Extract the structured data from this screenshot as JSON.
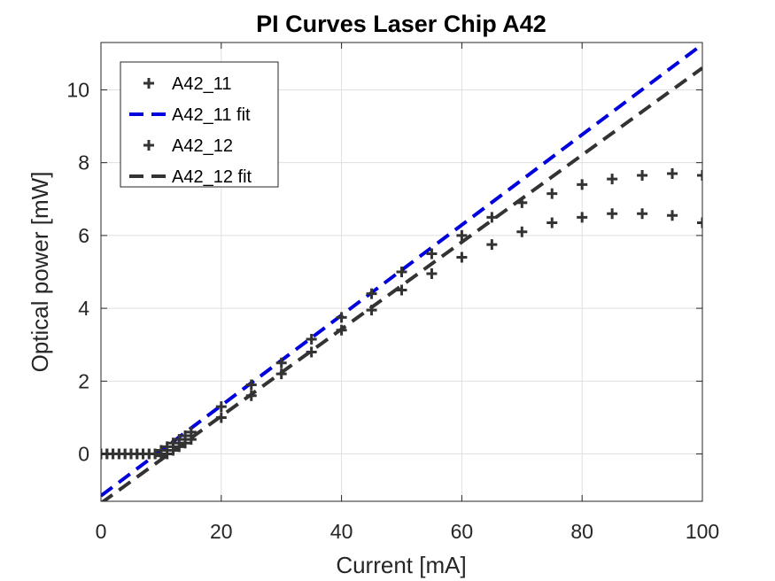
{
  "chart_data": {
    "type": "scatter",
    "title": "PI Curves Laser Chip A42",
    "xlabel": "Current [mA]",
    "ylabel": "Optical power [mW]",
    "xlim": [
      0,
      100
    ],
    "ylim": [
      -1.3,
      11.3
    ],
    "xticks": [
      0,
      20,
      40,
      60,
      80,
      100
    ],
    "yticks": [
      0,
      2,
      4,
      6,
      8,
      10
    ],
    "grid": true,
    "legend_position": "top-left",
    "series": [
      {
        "name": "A42_11",
        "kind": "markers",
        "marker": "plus",
        "color": "#333333",
        "points": [
          [
            0,
            0
          ],
          [
            1,
            0
          ],
          [
            2,
            0
          ],
          [
            3,
            0
          ],
          [
            4,
            0
          ],
          [
            5,
            0
          ],
          [
            6,
            0
          ],
          [
            7,
            0
          ],
          [
            8,
            0
          ],
          [
            9,
            0
          ],
          [
            10,
            0.1
          ],
          [
            11,
            0.2
          ],
          [
            12,
            0.3
          ],
          [
            13,
            0.4
          ],
          [
            14,
            0.5
          ],
          [
            15,
            0.6
          ],
          [
            20,
            1.3
          ],
          [
            25,
            1.9
          ],
          [
            30,
            2.5
          ],
          [
            35,
            3.15
          ],
          [
            40,
            3.75
          ],
          [
            45,
            4.4
          ],
          [
            50,
            5.0
          ],
          [
            55,
            5.5
          ],
          [
            60,
            6.0
          ],
          [
            65,
            6.5
          ],
          [
            70,
            6.9
          ],
          [
            75,
            7.15
          ],
          [
            80,
            7.4
          ],
          [
            85,
            7.55
          ],
          [
            90,
            7.65
          ],
          [
            95,
            7.7
          ],
          [
            100,
            7.65
          ]
        ]
      },
      {
        "name": "A42_11 fit",
        "kind": "line",
        "color": "#0000dd",
        "dash": true,
        "points": [
          [
            0,
            -1.15
          ],
          [
            100,
            11.25
          ]
        ]
      },
      {
        "name": "A42_12",
        "kind": "markers",
        "marker": "plus",
        "color": "#333333",
        "points": [
          [
            0,
            0
          ],
          [
            1,
            0
          ],
          [
            2,
            0
          ],
          [
            3,
            0
          ],
          [
            4,
            0
          ],
          [
            5,
            0
          ],
          [
            6,
            0
          ],
          [
            7,
            0
          ],
          [
            8,
            0
          ],
          [
            9,
            0
          ],
          [
            10,
            -0.05
          ],
          [
            11,
            0
          ],
          [
            12,
            0.1
          ],
          [
            13,
            0.2
          ],
          [
            14,
            0.3
          ],
          [
            15,
            0.4
          ],
          [
            20,
            1.0
          ],
          [
            25,
            1.6
          ],
          [
            30,
            2.2
          ],
          [
            35,
            2.8
          ],
          [
            40,
            3.4
          ],
          [
            45,
            3.95
          ],
          [
            50,
            4.5
          ],
          [
            55,
            4.95
          ],
          [
            60,
            5.4
          ],
          [
            65,
            5.75
          ],
          [
            70,
            6.1
          ],
          [
            75,
            6.35
          ],
          [
            80,
            6.5
          ],
          [
            85,
            6.6
          ],
          [
            90,
            6.6
          ],
          [
            95,
            6.55
          ],
          [
            100,
            6.35
          ]
        ]
      },
      {
        "name": "A42_12 fit",
        "kind": "line",
        "color": "#333333",
        "dash": true,
        "points": [
          [
            0,
            -1.35
          ],
          [
            100,
            10.6
          ]
        ]
      }
    ]
  }
}
